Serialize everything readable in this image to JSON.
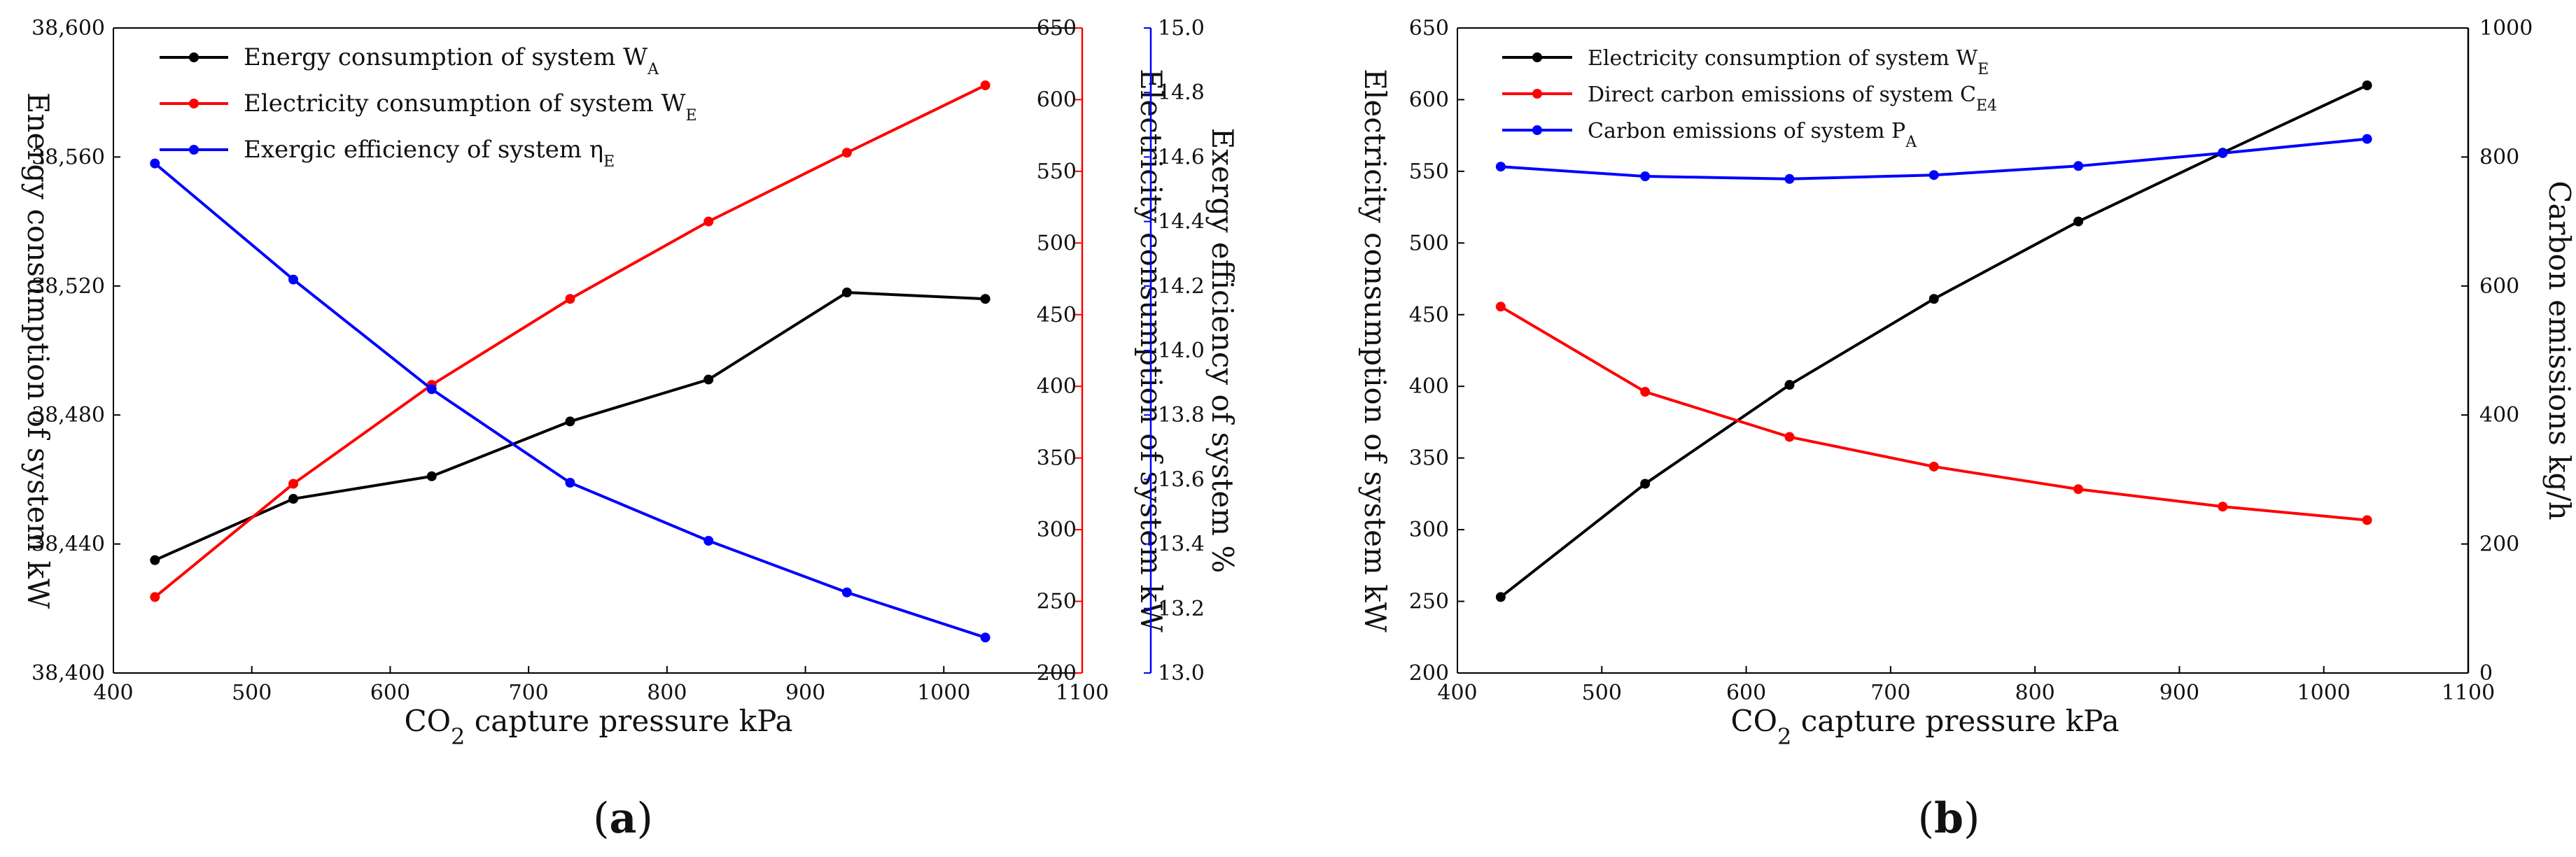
{
  "chart_data": [
    {
      "panel_label_pre": "(",
      "panel_label_letter": "a",
      "panel_label_post": ")",
      "type": "line",
      "xlabel_prefix": "CO",
      "xlabel_sub": "2",
      "xlabel_suffix": " capture pressure  kPa",
      "x": [
        430,
        530,
        630,
        730,
        830,
        930,
        1030
      ],
      "xlim": [
        400,
        1100
      ],
      "xticks": [
        400,
        500,
        600,
        700,
        800,
        900,
        1000,
        1100
      ],
      "xtick_labels": [
        "400",
        "500",
        "600",
        "700",
        "800",
        "900",
        "1000",
        "1100"
      ],
      "axes": [
        {
          "id": "left",
          "label": "Energy consumption of system kW",
          "color": "#000000",
          "ylim": [
            38400,
            38600
          ],
          "ticks": [
            38400,
            38440,
            38480,
            38520,
            38560,
            38600
          ],
          "tick_labels": [
            "38,400",
            "38,440",
            "38,480",
            "38,520",
            "38,560",
            "38,600"
          ]
        },
        {
          "id": "right1",
          "label": "Electricity consumption of system kW",
          "color": "#ff0000",
          "ylim": [
            200,
            650
          ],
          "ticks": [
            200,
            250,
            300,
            350,
            400,
            450,
            500,
            550,
            600,
            650
          ],
          "tick_labels": [
            "200",
            "250",
            "300",
            "350",
            "400",
            "450",
            "500",
            "550",
            "600",
            "650"
          ]
        },
        {
          "id": "right2",
          "label": "Exergy efficiency of system %",
          "color": "#0000ff",
          "ylim": [
            13.0,
            15.0
          ],
          "ticks": [
            13.0,
            13.2,
            13.4,
            13.6,
            13.8,
            14.0,
            14.2,
            14.4,
            14.6,
            14.8,
            15.0
          ],
          "tick_labels": [
            "13.0",
            "13.2",
            "13.4",
            "13.6",
            "13.8",
            "14.0",
            "14.2",
            "14.4",
            "14.6",
            "14.8",
            "15.0"
          ]
        }
      ],
      "series": [
        {
          "name_main": "Energy consumption of system W",
          "name_sub": "A",
          "color": "#000000",
          "axis": "left",
          "values": [
            38435,
            38454,
            38461,
            38478,
            38491,
            38518,
            38516
          ]
        },
        {
          "name_main": "Electricity consumption of system W",
          "name_sub": "E",
          "color": "#ff0000",
          "axis": "right1",
          "values": [
            253,
            332,
            401,
            461,
            515,
            563,
            610
          ]
        },
        {
          "name_main": "Exergic efficiency of system η",
          "name_sub": "E",
          "color": "#0000ff",
          "axis": "right2",
          "values": [
            14.58,
            14.22,
            13.88,
            13.59,
            13.41,
            13.25,
            13.11
          ]
        }
      ],
      "legend_position": "top-left"
    },
    {
      "panel_label_pre": "(",
      "panel_label_letter": "b",
      "panel_label_post": ")",
      "type": "line",
      "xlabel_prefix": "CO",
      "xlabel_sub": "2",
      "xlabel_suffix": " capture pressure kPa",
      "x": [
        430,
        530,
        630,
        730,
        830,
        930,
        1030
      ],
      "xlim": [
        400,
        1100
      ],
      "xticks": [
        400,
        500,
        600,
        700,
        800,
        900,
        1000,
        1100
      ],
      "xtick_labels": [
        "400",
        "500",
        "600",
        "700",
        "800",
        "900",
        "1000",
        "1100"
      ],
      "axes": [
        {
          "id": "left",
          "label": "Electricity consumption of system kW",
          "color": "#000000",
          "ylim": [
            200,
            650
          ],
          "ticks": [
            200,
            250,
            300,
            350,
            400,
            450,
            500,
            550,
            600,
            650
          ],
          "tick_labels": [
            "200",
            "250",
            "300",
            "350",
            "400",
            "450",
            "500",
            "550",
            "600",
            "650"
          ]
        },
        {
          "id": "right",
          "label": "Carbon emissions kg/h",
          "color": "#000000",
          "ylim": [
            0,
            1000
          ],
          "ticks": [
            0,
            200,
            400,
            600,
            800,
            1000
          ],
          "tick_labels": [
            "0",
            "200",
            "400",
            "600",
            "800",
            "1000"
          ]
        }
      ],
      "series": [
        {
          "name_main": "Electricity consumption of system W",
          "name_sub": "E",
          "color": "#000000",
          "axis": "left",
          "values": [
            253,
            332,
            401,
            461,
            515,
            563,
            610
          ]
        },
        {
          "name_main": "Direct carbon emissions of system C",
          "name_sub": "E4",
          "color": "#ff0000",
          "axis": "right",
          "values": [
            568,
            436,
            366,
            320,
            285,
            258,
            237
          ]
        },
        {
          "name_main": "Carbon emissions of system P",
          "name_sub": "A",
          "color": "#0000ff",
          "axis": "right",
          "values": [
            785,
            770,
            766,
            772,
            786,
            806,
            828
          ]
        }
      ],
      "legend_position": "top-left"
    }
  ]
}
